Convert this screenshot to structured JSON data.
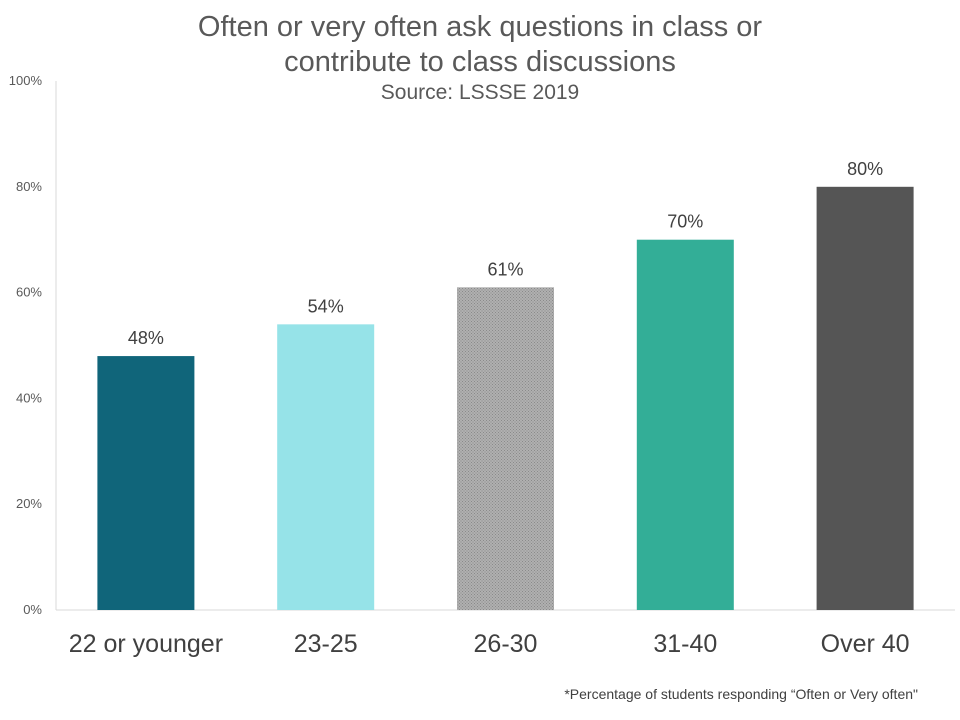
{
  "title_line1": "Often or very often ask questions in class or",
  "title_line2": "contribute to class discussions",
  "subtitle": "Source: LSSSE 2019",
  "footnote": "*Percentage of students responding “Often or Very often\"",
  "chart_data": {
    "type": "bar",
    "categories": [
      "22 or younger",
      "23-25",
      "26-30",
      "31-40",
      "Over 40"
    ],
    "values": [
      48,
      54,
      61,
      70,
      80
    ],
    "data_labels": [
      "48%",
      "54%",
      "61%",
      "70%",
      "80%"
    ],
    "colors": [
      "#10657a",
      "#96e3e8",
      "#a3a3a3",
      "#33ae97",
      "#555555"
    ],
    "ylim": [
      0,
      100
    ],
    "yticks": [
      0,
      20,
      40,
      60,
      80,
      100
    ],
    "ytick_labels": [
      "0%",
      "20%",
      "40%",
      "60%",
      "80%",
      "100%"
    ],
    "grid": false,
    "legend": "none"
  }
}
